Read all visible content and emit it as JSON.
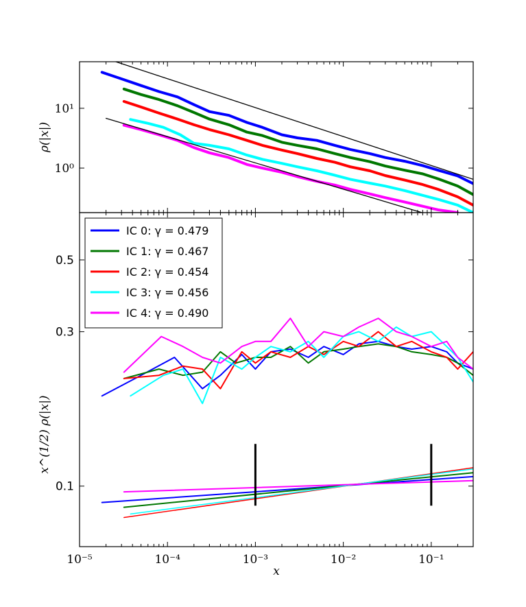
{
  "chart_data": [
    {
      "panel": "top",
      "type": "line",
      "xscale": "log",
      "yscale": "log",
      "xlim": [
        1e-05,
        0.3
      ],
      "ylim": [
        0.18,
        60
      ],
      "ylabel": "ρ(|x|)",
      "yticks": [
        1,
        10
      ],
      "ytick_labels": [
        "10⁰",
        "10¹"
      ],
      "series": [
        {
          "name": "IC 0",
          "color": "#0000ff",
          "width": 4,
          "x": [
            1.8e-05,
            3e-05,
            5e-05,
            8e-05,
            0.00013,
            0.0002,
            0.0003,
            0.0005,
            0.0008,
            0.0012,
            0.002,
            0.003,
            0.005,
            0.008,
            0.012,
            0.02,
            0.03,
            0.05,
            0.08,
            0.12,
            0.2,
            0.3
          ],
          "y": [
            40,
            31,
            24,
            19,
            15.5,
            11.5,
            8.8,
            7.6,
            5.8,
            4.8,
            3.6,
            3.2,
            2.9,
            2.4,
            2.05,
            1.75,
            1.5,
            1.3,
            1.1,
            0.92,
            0.74,
            0.55
          ]
        },
        {
          "name": "IC 1",
          "color": "#007700",
          "width": 4,
          "x": [
            3.2e-05,
            5e-05,
            8e-05,
            0.00013,
            0.0002,
            0.0003,
            0.0005,
            0.0008,
            0.0012,
            0.002,
            0.003,
            0.005,
            0.008,
            0.012,
            0.02,
            0.03,
            0.05,
            0.08,
            0.12,
            0.2,
            0.3
          ],
          "y": [
            21,
            17,
            14,
            11,
            8.5,
            6.6,
            5.3,
            4.0,
            3.5,
            2.7,
            2.4,
            2.1,
            1.75,
            1.5,
            1.28,
            1.08,
            0.92,
            0.8,
            0.66,
            0.5,
            0.36
          ]
        },
        {
          "name": "IC 2",
          "color": "#ff0000",
          "width": 4,
          "x": [
            3.2e-05,
            5e-05,
            8e-05,
            0.00013,
            0.0002,
            0.0003,
            0.0005,
            0.0008,
            0.0012,
            0.002,
            0.003,
            0.005,
            0.008,
            0.012,
            0.02,
            0.03,
            0.05,
            0.08,
            0.12,
            0.2,
            0.3
          ],
          "y": [
            13,
            10.5,
            8.3,
            6.6,
            5.3,
            4.4,
            3.6,
            2.9,
            2.4,
            2.0,
            1.75,
            1.45,
            1.25,
            1.05,
            0.9,
            0.75,
            0.63,
            0.53,
            0.44,
            0.33,
            0.24
          ]
        },
        {
          "name": "IC 3",
          "color": "#00ffff",
          "width": 4,
          "x": [
            3.8e-05,
            6e-05,
            9e-05,
            0.00014,
            0.0002,
            0.0003,
            0.0005,
            0.0008,
            0.0012,
            0.002,
            0.003,
            0.005,
            0.008,
            0.012,
            0.02,
            0.03,
            0.05,
            0.08,
            0.12,
            0.2,
            0.3
          ],
          "y": [
            6.5,
            5.6,
            4.8,
            3.6,
            2.6,
            2.4,
            2.1,
            1.65,
            1.4,
            1.2,
            1.05,
            0.9,
            0.76,
            0.65,
            0.56,
            0.5,
            0.42,
            0.35,
            0.3,
            0.24,
            0.18
          ]
        },
        {
          "name": "IC 4",
          "color": "#ff00ff",
          "width": 4,
          "x": [
            3.2e-05,
            5e-05,
            8e-05,
            0.00013,
            0.0002,
            0.0003,
            0.0005,
            0.0008,
            0.0012,
            0.002,
            0.003,
            0.005,
            0.008,
            0.012,
            0.02,
            0.03,
            0.05,
            0.08,
            0.12,
            0.2
          ],
          "y": [
            5.2,
            4.4,
            3.6,
            2.9,
            2.2,
            1.8,
            1.5,
            1.15,
            1.0,
            0.85,
            0.72,
            0.6,
            0.52,
            0.44,
            0.37,
            0.32,
            0.27,
            0.23,
            0.2,
            0.18
          ]
        },
        {
          "name": "upper guide",
          "color": "#000000",
          "width": 1.3,
          "x": [
            1e-05,
            0.3
          ],
          "y": [
            95,
            0.65
          ]
        },
        {
          "name": "lower guide",
          "color": "#000000",
          "width": 1.3,
          "x": [
            2e-05,
            0.3
          ],
          "y": [
            6.8,
            0.1
          ]
        }
      ]
    },
    {
      "panel": "bottom",
      "type": "line",
      "xscale": "log",
      "yscale": "log",
      "xlim": [
        1e-05,
        0.3
      ],
      "ylim": [
        0.065,
        0.7
      ],
      "xlabel": "x",
      "ylabel": "x^(1/2) ρ(|x|)",
      "xticks": [
        1e-05,
        0.0001,
        0.001,
        0.01,
        0.1
      ],
      "xtick_labels": [
        "10⁻⁵",
        "10⁻⁴",
        "10⁻³",
        "10⁻²",
        "10⁻¹"
      ],
      "yticks": [
        0.1,
        0.3,
        0.5
      ],
      "ytick_labels": [
        "0.1",
        "0.3",
        "0.5"
      ],
      "legend": {
        "position": "upper-left",
        "entries": [
          {
            "label": "IC 0: γ = 0.479",
            "color": "#0000ff"
          },
          {
            "label": "IC 1: γ = 0.467",
            "color": "#007700"
          },
          {
            "label": "IC 2: γ = 0.454",
            "color": "#ff0000"
          },
          {
            "label": "IC 3: γ = 0.456",
            "color": "#00ffff"
          },
          {
            "label": "IC 4: γ = 0.490",
            "color": "#ff00ff"
          }
        ]
      },
      "vertical_markers": [
        0.001,
        0.1
      ],
      "marker_range": [
        0.087,
        0.135
      ],
      "series": [
        {
          "name": "IC 0 data",
          "color": "#0000ff",
          "width": 2,
          "x": [
            1.8e-05,
            5e-05,
            0.00012,
            0.00025,
            0.0004,
            0.0007,
            0.001,
            0.0015,
            0.0025,
            0.004,
            0.006,
            0.01,
            0.015,
            0.025,
            0.04,
            0.06,
            0.1,
            0.15,
            0.2,
            0.3
          ],
          "y": [
            0.19,
            0.22,
            0.25,
            0.2,
            0.22,
            0.255,
            0.23,
            0.26,
            0.265,
            0.25,
            0.27,
            0.255,
            0.275,
            0.28,
            0.27,
            0.265,
            0.27,
            0.26,
            0.24,
            0.23
          ]
        },
        {
          "name": "IC 1 data",
          "color": "#007700",
          "width": 2,
          "x": [
            3.2e-05,
            8e-05,
            0.00015,
            0.00025,
            0.0004,
            0.0006,
            0.001,
            0.0015,
            0.0025,
            0.004,
            0.006,
            0.01,
            0.015,
            0.025,
            0.04,
            0.06,
            0.1,
            0.15,
            0.2,
            0.3
          ],
          "y": [
            0.215,
            0.23,
            0.22,
            0.225,
            0.26,
            0.24,
            0.25,
            0.25,
            0.27,
            0.24,
            0.26,
            0.265,
            0.27,
            0.275,
            0.27,
            0.26,
            0.255,
            0.25,
            0.24,
            0.22
          ]
        },
        {
          "name": "IC 2 data",
          "color": "#ff0000",
          "width": 2,
          "x": [
            3.2e-05,
            8e-05,
            0.00015,
            0.00025,
            0.0004,
            0.0007,
            0.001,
            0.0015,
            0.0025,
            0.004,
            0.006,
            0.01,
            0.015,
            0.025,
            0.04,
            0.06,
            0.1,
            0.15,
            0.2,
            0.3
          ],
          "y": [
            0.215,
            0.22,
            0.235,
            0.23,
            0.2,
            0.26,
            0.24,
            0.26,
            0.25,
            0.27,
            0.255,
            0.28,
            0.27,
            0.3,
            0.27,
            0.28,
            0.26,
            0.25,
            0.23,
            0.26
          ]
        },
        {
          "name": "IC 3 data",
          "color": "#00ffff",
          "width": 2,
          "x": [
            3.8e-05,
            9e-05,
            0.00015,
            0.00025,
            0.0004,
            0.0007,
            0.001,
            0.0015,
            0.0025,
            0.004,
            0.006,
            0.01,
            0.015,
            0.025,
            0.04,
            0.06,
            0.1,
            0.15,
            0.2,
            0.3
          ],
          "y": [
            0.19,
            0.22,
            0.23,
            0.18,
            0.25,
            0.23,
            0.25,
            0.27,
            0.26,
            0.28,
            0.25,
            0.29,
            0.3,
            0.28,
            0.31,
            0.29,
            0.3,
            0.27,
            0.25,
            0.21
          ]
        },
        {
          "name": "IC 4 data",
          "color": "#ff00ff",
          "width": 2,
          "x": [
            3.2e-05,
            8.5e-05,
            0.00015,
            0.00025,
            0.0004,
            0.0007,
            0.001,
            0.0015,
            0.0025,
            0.004,
            0.006,
            0.01,
            0.015,
            0.025,
            0.04,
            0.06,
            0.1,
            0.15,
            0.2,
            0.3
          ],
          "y": [
            0.225,
            0.29,
            0.27,
            0.25,
            0.24,
            0.27,
            0.28,
            0.28,
            0.33,
            0.27,
            0.3,
            0.29,
            0.31,
            0.33,
            0.3,
            0.29,
            0.27,
            0.28,
            0.25,
            0.23
          ]
        },
        {
          "name": "IC 0 fit",
          "color": "#0000ff",
          "width": 2,
          "x": [
            1.8e-05,
            0.3
          ],
          "y": [
            0.089,
            0.107
          ]
        },
        {
          "name": "IC 1 fit",
          "color": "#007700",
          "width": 2,
          "x": [
            3.2e-05,
            0.3
          ],
          "y": [
            0.086,
            0.11
          ]
        },
        {
          "name": "IC 2 fit",
          "color": "#ff0000",
          "width": 1.5,
          "x": [
            3.2e-05,
            0.3
          ],
          "y": [
            0.08,
            0.114
          ]
        },
        {
          "name": "IC 3 fit",
          "color": "#00ffff",
          "width": 1.5,
          "x": [
            3.8e-05,
            0.3
          ],
          "y": [
            0.082,
            0.113
          ]
        },
        {
          "name": "IC 4 fit",
          "color": "#ff00ff",
          "width": 2,
          "x": [
            3.2e-05,
            0.3
          ],
          "y": [
            0.096,
            0.104
          ]
        }
      ]
    }
  ]
}
